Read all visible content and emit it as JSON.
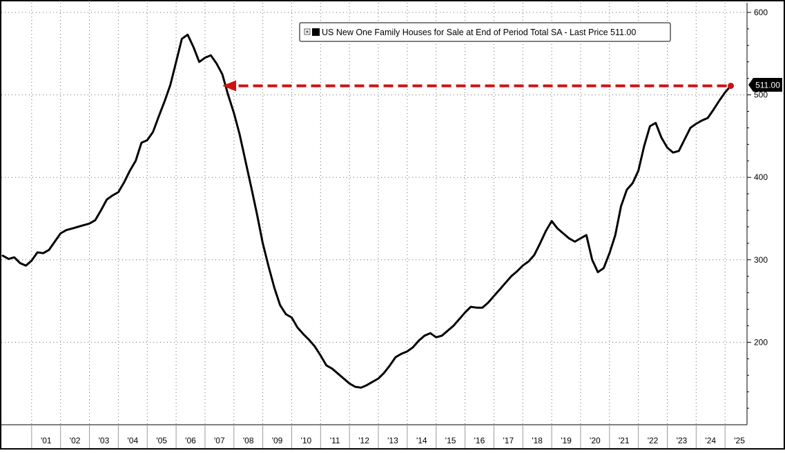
{
  "chart_data": {
    "type": "line",
    "legend_text": "US New One Family Houses for Sale at End of Period Total SA - Last Price 511.00",
    "legend_position": "top",
    "last_value_label": "511.00",
    "grid": true,
    "y_axis_side": "right",
    "ylim": [
      100,
      600
    ],
    "yticks": [
      600,
      500,
      400,
      300,
      200
    ],
    "xticks": [
      "'01",
      "'02",
      "'03",
      "'04",
      "'05",
      "'06",
      "'07",
      "'08",
      "'09",
      "'10",
      "'11",
      "'12",
      "'13",
      "'14",
      "'15",
      "'16",
      "'17",
      "'18",
      "'19",
      "'20",
      "'21",
      "'22",
      "'23",
      "'24",
      "'25"
    ],
    "annotation": {
      "type": "dashed-arrow",
      "color": "#d01010",
      "from_x": 2025.0,
      "to_x": 2007.6,
      "y": 511
    },
    "series": [
      {
        "color": "#000000",
        "points": [
          [
            2000.0,
            305
          ],
          [
            2000.2,
            301
          ],
          [
            2000.4,
            303
          ],
          [
            2000.6,
            296
          ],
          [
            2000.8,
            293
          ],
          [
            2001.0,
            299
          ],
          [
            2001.2,
            309
          ],
          [
            2001.4,
            308
          ],
          [
            2001.6,
            312
          ],
          [
            2001.8,
            322
          ],
          [
            2002.0,
            332
          ],
          [
            2002.2,
            336
          ],
          [
            2002.4,
            338
          ],
          [
            2002.6,
            340
          ],
          [
            2002.8,
            342
          ],
          [
            2003.0,
            344
          ],
          [
            2003.2,
            348
          ],
          [
            2003.4,
            360
          ],
          [
            2003.6,
            373
          ],
          [
            2003.8,
            378
          ],
          [
            2004.0,
            382
          ],
          [
            2004.2,
            394
          ],
          [
            2004.4,
            408
          ],
          [
            2004.6,
            420
          ],
          [
            2004.8,
            442
          ],
          [
            2005.0,
            445
          ],
          [
            2005.2,
            455
          ],
          [
            2005.4,
            474
          ],
          [
            2005.6,
            492
          ],
          [
            2005.8,
            512
          ],
          [
            2006.0,
            540
          ],
          [
            2006.2,
            568
          ],
          [
            2006.4,
            573
          ],
          [
            2006.6,
            558
          ],
          [
            2006.8,
            540
          ],
          [
            2007.0,
            545
          ],
          [
            2007.2,
            548
          ],
          [
            2007.4,
            538
          ],
          [
            2007.6,
            525
          ],
          [
            2007.8,
            500
          ],
          [
            2008.0,
            478
          ],
          [
            2008.2,
            452
          ],
          [
            2008.4,
            420
          ],
          [
            2008.6,
            388
          ],
          [
            2008.8,
            355
          ],
          [
            2009.0,
            320
          ],
          [
            2009.2,
            292
          ],
          [
            2009.4,
            266
          ],
          [
            2009.6,
            245
          ],
          [
            2009.8,
            234
          ],
          [
            2010.0,
            230
          ],
          [
            2010.2,
            218
          ],
          [
            2010.4,
            210
          ],
          [
            2010.6,
            203
          ],
          [
            2010.8,
            195
          ],
          [
            2011.0,
            184
          ],
          [
            2011.2,
            172
          ],
          [
            2011.4,
            168
          ],
          [
            2011.6,
            162
          ],
          [
            2011.8,
            156
          ],
          [
            2012.0,
            150
          ],
          [
            2012.2,
            146
          ],
          [
            2012.4,
            145
          ],
          [
            2012.6,
            148
          ],
          [
            2012.8,
            152
          ],
          [
            2013.0,
            156
          ],
          [
            2013.2,
            163
          ],
          [
            2013.4,
            172
          ],
          [
            2013.6,
            182
          ],
          [
            2013.8,
            186
          ],
          [
            2014.0,
            189
          ],
          [
            2014.2,
            194
          ],
          [
            2014.4,
            202
          ],
          [
            2014.6,
            208
          ],
          [
            2014.8,
            211
          ],
          [
            2015.0,
            206
          ],
          [
            2015.2,
            208
          ],
          [
            2015.4,
            214
          ],
          [
            2015.6,
            220
          ],
          [
            2015.8,
            228
          ],
          [
            2016.0,
            236
          ],
          [
            2016.2,
            243
          ],
          [
            2016.4,
            242
          ],
          [
            2016.6,
            242
          ],
          [
            2016.8,
            248
          ],
          [
            2017.0,
            256
          ],
          [
            2017.2,
            264
          ],
          [
            2017.4,
            272
          ],
          [
            2017.6,
            280
          ],
          [
            2017.8,
            286
          ],
          [
            2018.0,
            293
          ],
          [
            2018.2,
            298
          ],
          [
            2018.4,
            306
          ],
          [
            2018.6,
            320
          ],
          [
            2018.8,
            335
          ],
          [
            2019.0,
            347
          ],
          [
            2019.2,
            338
          ],
          [
            2019.4,
            332
          ],
          [
            2019.6,
            326
          ],
          [
            2019.8,
            322
          ],
          [
            2020.0,
            326
          ],
          [
            2020.2,
            330
          ],
          [
            2020.4,
            300
          ],
          [
            2020.6,
            285
          ],
          [
            2020.8,
            290
          ],
          [
            2021.0,
            308
          ],
          [
            2021.2,
            330
          ],
          [
            2021.4,
            365
          ],
          [
            2021.6,
            385
          ],
          [
            2021.8,
            393
          ],
          [
            2022.0,
            408
          ],
          [
            2022.2,
            438
          ],
          [
            2022.4,
            462
          ],
          [
            2022.6,
            466
          ],
          [
            2022.8,
            448
          ],
          [
            2023.0,
            436
          ],
          [
            2023.2,
            430
          ],
          [
            2023.4,
            432
          ],
          [
            2023.6,
            446
          ],
          [
            2023.8,
            460
          ],
          [
            2024.0,
            465
          ],
          [
            2024.2,
            469
          ],
          [
            2024.4,
            472
          ],
          [
            2024.6,
            482
          ],
          [
            2024.8,
            493
          ],
          [
            2025.0,
            503
          ],
          [
            2025.2,
            511
          ]
        ]
      }
    ]
  }
}
